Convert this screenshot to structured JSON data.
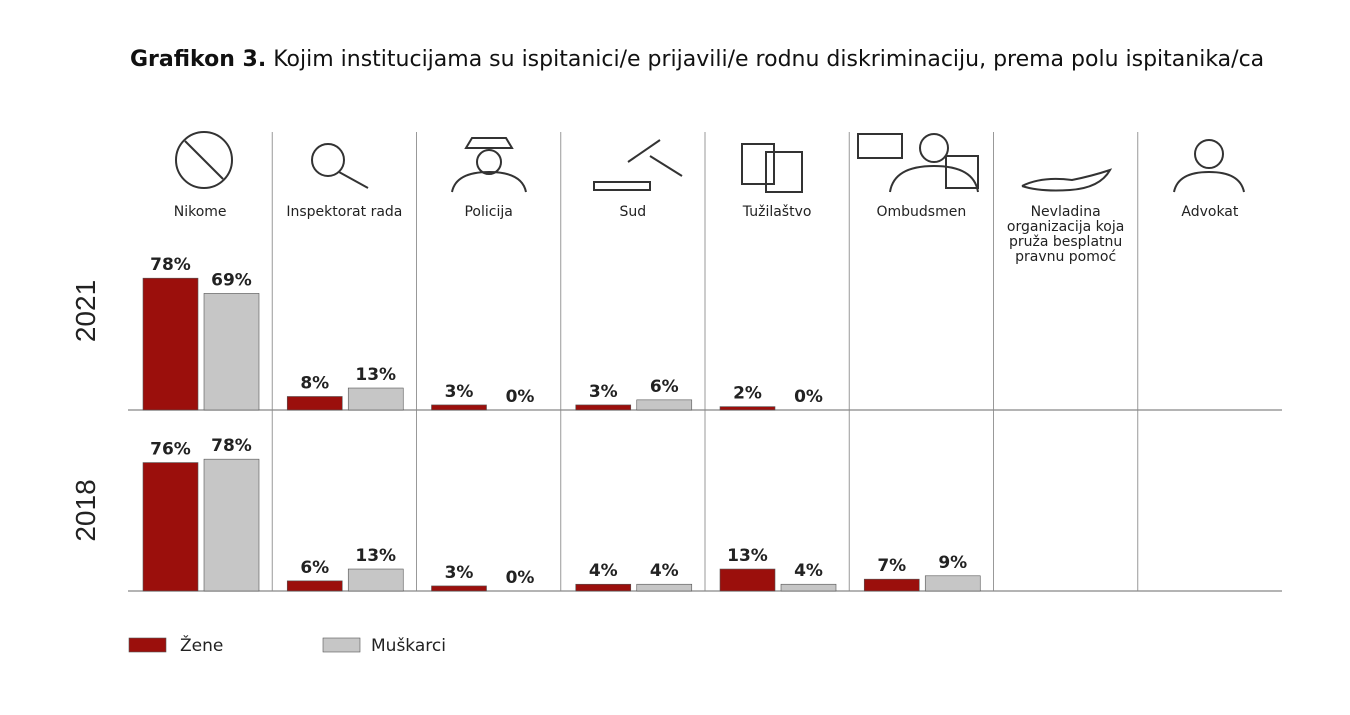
{
  "chart_data": {
    "type": "bar",
    "title_label": "Grafikon 3.",
    "title": "Kojim institucijama su ispitanici/e prijavili/e rodnu diskriminaciju, prema polu ispitanika/ca",
    "categories": [
      "Nikome",
      "Inspektorat rada",
      "Policija",
      "Sud",
      "Tužilaštvo",
      "Ombudsmen",
      "Nevladina organizacija koja pruža besplatnu pravnu pomoć",
      "Advokat"
    ],
    "series": [
      {
        "name": "Žene",
        "color": "#9b0f0c"
      },
      {
        "name": "Muškarci",
        "color": "#c6c6c6"
      }
    ],
    "panels": [
      {
        "label": "2021",
        "values": [
          [
            78,
            8,
            3,
            3,
            2,
            null,
            null,
            null
          ],
          [
            69,
            13,
            0,
            6,
            0,
            null,
            null,
            null
          ]
        ],
        "value_labels": [
          [
            "78%",
            "8%",
            "3%",
            "3%",
            "2%",
            null,
            null,
            null
          ],
          [
            "69%",
            "13%",
            "0%",
            "6%",
            "0%",
            null,
            null,
            null
          ]
        ]
      },
      {
        "label": "2018",
        "values": [
          [
            76,
            6,
            3,
            4,
            13,
            7,
            null,
            null
          ],
          [
            78,
            13,
            0,
            4,
            4,
            9,
            null,
            null
          ]
        ],
        "value_labels": [
          [
            "76%",
            "6%",
            "3%",
            "4%",
            "13%",
            "7%",
            null,
            null
          ],
          [
            "78%",
            "13%",
            "0%",
            "4%",
            "4%",
            "9%",
            null,
            null
          ]
        ]
      }
    ]
  }
}
